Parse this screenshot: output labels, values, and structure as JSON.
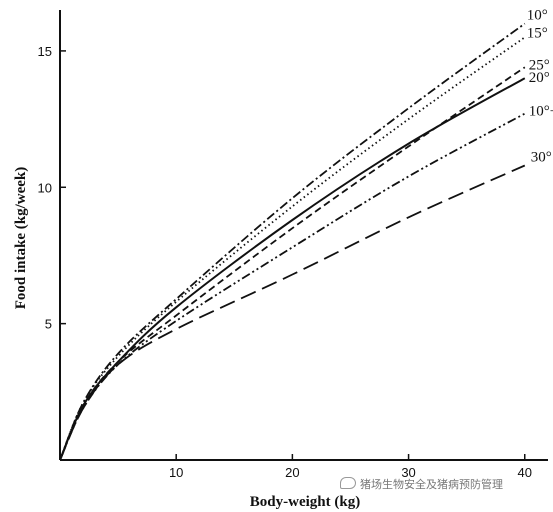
{
  "chart_data": {
    "type": "line",
    "title": "",
    "xlabel": "Body-weight (kg)",
    "ylabel": "Food intake (kg/week)",
    "xlim": [
      0,
      42
    ],
    "ylim": [
      0,
      16.5
    ],
    "xticks": [
      10,
      20,
      30,
      40
    ],
    "yticks": [
      5,
      10,
      15
    ],
    "grid": false,
    "series": [
      {
        "name": "10°",
        "style": "dash-dot",
        "x": [
          0,
          2,
          5,
          10,
          20,
          30,
          40
        ],
        "y": [
          0,
          2.1,
          3.9,
          5.9,
          9.6,
          12.9,
          16.0
        ]
      },
      {
        "name": "15°",
        "style": "dotted",
        "x": [
          0,
          2,
          5,
          10,
          20,
          30,
          40
        ],
        "y": [
          0,
          2.1,
          3.8,
          5.8,
          9.3,
          12.5,
          15.5
        ]
      },
      {
        "name": "25°",
        "style": "dashed",
        "x": [
          0,
          2,
          5,
          10,
          20,
          30,
          40
        ],
        "y": [
          0,
          2.0,
          3.6,
          5.3,
          8.5,
          11.5,
          14.4
        ]
      },
      {
        "name": "20°",
        "style": "solid",
        "x": [
          0,
          2,
          5,
          10,
          20,
          30,
          40
        ],
        "y": [
          0,
          2.0,
          3.6,
          5.6,
          8.8,
          11.6,
          14.0
        ]
      },
      {
        "name": "10°+",
        "style": "dash-dot-dot",
        "x": [
          0,
          2,
          5,
          10,
          20,
          30,
          40
        ],
        "y": [
          0,
          1.9,
          3.5,
          5.1,
          7.8,
          10.4,
          12.7
        ]
      },
      {
        "name": "30°",
        "style": "long-dash",
        "x": [
          0,
          2,
          5,
          10,
          20,
          30,
          40
        ],
        "y": [
          0,
          1.9,
          3.5,
          4.8,
          6.8,
          8.9,
          10.8
        ]
      }
    ]
  },
  "watermark": "猪场生物安全及猪病预防管理",
  "colors": {
    "ink": "#111111",
    "watermark": "#777777"
  }
}
